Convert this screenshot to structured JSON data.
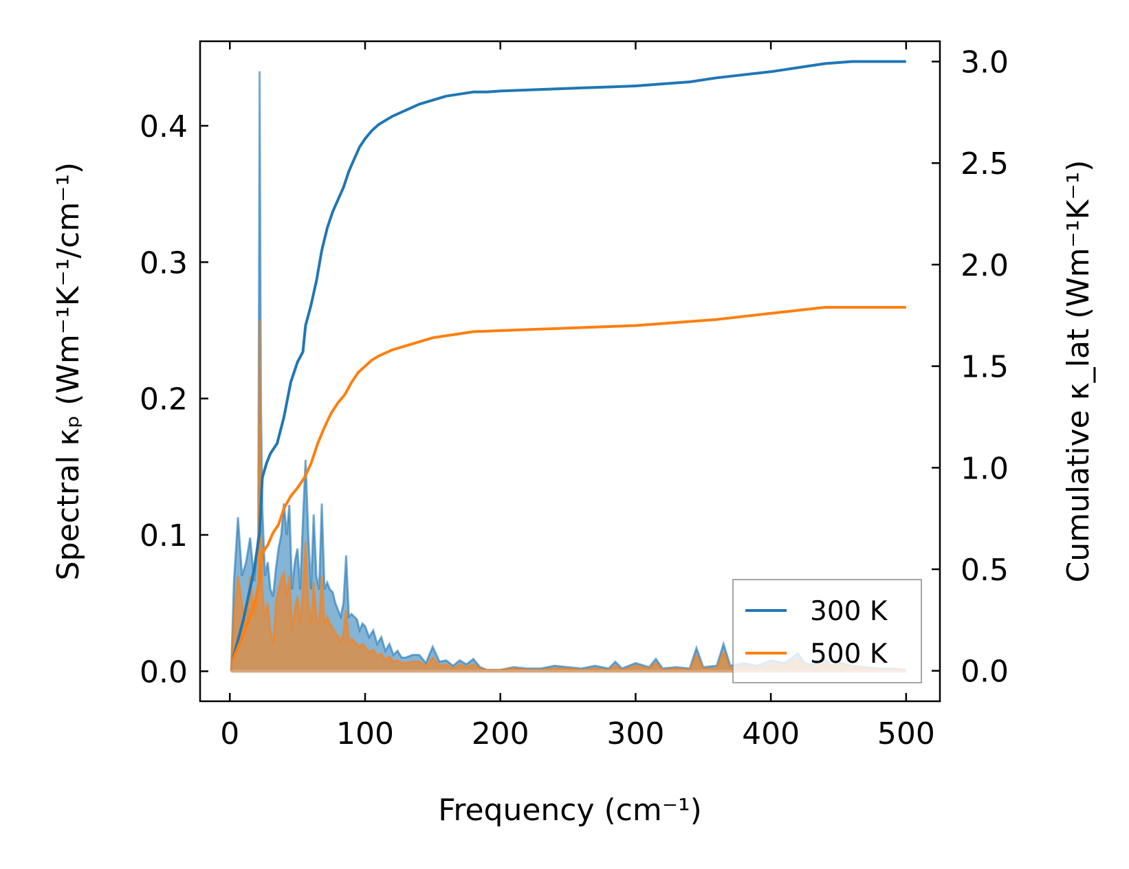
{
  "chart_data": {
    "type": "line",
    "xlabel": "Frequency (cm⁻¹)",
    "ylabel_left": "Spectral κₚ (Wm⁻¹K⁻¹/cm⁻¹)",
    "ylabel_right": "Cumulative κ_lat (Wm⁻¹K⁻¹)",
    "xlim": [
      -22,
      525
    ],
    "ylim_left": [
      -0.022,
      0.462
    ],
    "ylim_right": [
      -0.15,
      3.1
    ],
    "x_ticks": [
      0,
      100,
      200,
      300,
      400,
      500
    ],
    "y_left_ticks": [
      0.0,
      0.1,
      0.2,
      0.3,
      0.4
    ],
    "y_right_ticks": [
      0.0,
      0.5,
      1.0,
      1.5,
      2.0,
      2.5,
      3.0
    ],
    "legend_position": "lower-right",
    "series": [
      {
        "name": "300 K",
        "color": "#1f77b4",
        "cumulative": {
          "x": [
            2,
            10,
            18,
            22,
            24,
            27,
            30,
            35,
            40,
            45,
            50,
            54,
            56,
            60,
            64,
            68,
            72,
            76,
            80,
            84,
            88,
            92,
            96,
            100,
            105,
            110,
            120,
            130,
            140,
            150,
            160,
            170,
            180,
            190,
            200,
            220,
            240,
            260,
            280,
            300,
            320,
            340,
            360,
            380,
            400,
            420,
            440,
            460,
            480,
            500
          ],
          "y": [
            0.05,
            0.25,
            0.5,
            0.68,
            0.95,
            1.02,
            1.07,
            1.12,
            1.25,
            1.42,
            1.52,
            1.57,
            1.7,
            1.8,
            1.92,
            2.07,
            2.18,
            2.26,
            2.32,
            2.38,
            2.46,
            2.52,
            2.58,
            2.62,
            2.66,
            2.69,
            2.73,
            2.76,
            2.79,
            2.81,
            2.83,
            2.84,
            2.85,
            2.85,
            2.855,
            2.86,
            2.865,
            2.87,
            2.875,
            2.88,
            2.89,
            2.9,
            2.92,
            2.935,
            2.95,
            2.97,
            2.99,
            3.0,
            3.0,
            3.0
          ]
        },
        "spectral": {
          "x": [
            1,
            3,
            6,
            9,
            12,
            15,
            18,
            21,
            22,
            23,
            24,
            26,
            28,
            30,
            32,
            34,
            36,
            38,
            40,
            42,
            44,
            46,
            48,
            50,
            52,
            54,
            56,
            58,
            60,
            62,
            64,
            66,
            68,
            70,
            72,
            74,
            76,
            78,
            80,
            82,
            84,
            86,
            88,
            90,
            92,
            94,
            96,
            98,
            100,
            103,
            106,
            109,
            112,
            115,
            118,
            121,
            124,
            127,
            130,
            135,
            140,
            145,
            150,
            155,
            160,
            165,
            170,
            175,
            180,
            185,
            190,
            200,
            210,
            220,
            230,
            240,
            250,
            260,
            270,
            280,
            285,
            290,
            300,
            310,
            315,
            320,
            330,
            340,
            345,
            350,
            360,
            365,
            370,
            380,
            390,
            400,
            410,
            420,
            425,
            430,
            440,
            445,
            450,
            460,
            470,
            480,
            490,
            500
          ],
          "y": [
            0.0,
            0.065,
            0.113,
            0.07,
            0.08,
            0.098,
            0.066,
            0.1,
            0.44,
            0.2,
            0.12,
            0.07,
            0.08,
            0.06,
            0.055,
            0.075,
            0.09,
            0.1,
            0.123,
            0.1,
            0.122,
            0.06,
            0.08,
            0.09,
            0.06,
            0.11,
            0.155,
            0.1,
            0.06,
            0.115,
            0.07,
            0.06,
            0.123,
            0.06,
            0.065,
            0.06,
            0.058,
            0.05,
            0.045,
            0.04,
            0.05,
            0.085,
            0.04,
            0.042,
            0.04,
            0.038,
            0.03,
            0.035,
            0.033,
            0.025,
            0.03,
            0.02,
            0.025,
            0.015,
            0.02,
            0.012,
            0.015,
            0.01,
            0.01,
            0.012,
            0.012,
            0.006,
            0.018,
            0.007,
            0.008,
            0.004,
            0.008,
            0.005,
            0.009,
            0.003,
            0.001,
            0.001,
            0.003,
            0.002,
            0.002,
            0.004,
            0.003,
            0.002,
            0.004,
            0.002,
            0.007,
            0.002,
            0.006,
            0.003,
            0.009,
            0.002,
            0.003,
            0.002,
            0.017,
            0.003,
            0.004,
            0.02,
            0.004,
            0.006,
            0.004,
            0.008,
            0.006,
            0.013,
            0.006,
            0.005,
            0.009,
            0.004,
            0.007,
            0.004,
            0.003,
            0.002,
            0.002,
            0.001
          ]
        }
      },
      {
        "name": "500 K",
        "color": "#ff7f0e",
        "cumulative": {
          "x": [
            2,
            10,
            18,
            22,
            24,
            28,
            32,
            36,
            40,
            45,
            50,
            55,
            60,
            65,
            70,
            75,
            80,
            85,
            90,
            95,
            100,
            105,
            110,
            120,
            130,
            140,
            150,
            160,
            170,
            180,
            190,
            200,
            220,
            240,
            260,
            280,
            300,
            320,
            340,
            360,
            380,
            400,
            420,
            440,
            460,
            480,
            500
          ],
          "y": [
            0.05,
            0.18,
            0.32,
            0.45,
            0.58,
            0.62,
            0.68,
            0.72,
            0.8,
            0.86,
            0.9,
            0.95,
            1.02,
            1.12,
            1.2,
            1.27,
            1.32,
            1.36,
            1.42,
            1.47,
            1.5,
            1.53,
            1.55,
            1.58,
            1.6,
            1.62,
            1.64,
            1.65,
            1.66,
            1.67,
            1.672,
            1.675,
            1.68,
            1.685,
            1.69,
            1.695,
            1.7,
            1.71,
            1.72,
            1.73,
            1.745,
            1.76,
            1.775,
            1.79,
            1.79,
            1.79,
            1.79
          ]
        },
        "spectral": {
          "x": [
            1,
            3,
            6,
            9,
            12,
            15,
            18,
            21,
            22,
            23,
            24,
            26,
            28,
            30,
            32,
            34,
            36,
            38,
            40,
            42,
            44,
            46,
            48,
            50,
            52,
            54,
            56,
            58,
            60,
            62,
            64,
            66,
            68,
            70,
            72,
            74,
            76,
            78,
            80,
            82,
            84,
            86,
            88,
            90,
            92,
            94,
            96,
            98,
            100,
            103,
            106,
            109,
            112,
            115,
            118,
            121,
            124,
            127,
            130,
            135,
            140,
            145,
            150,
            155,
            160,
            165,
            170,
            175,
            180,
            185,
            190,
            200,
            210,
            220,
            230,
            240,
            250,
            260,
            270,
            280,
            285,
            290,
            300,
            310,
            315,
            320,
            330,
            340,
            345,
            350,
            360,
            365,
            370,
            380,
            390,
            400,
            410,
            420,
            425,
            430,
            440,
            445,
            450,
            460,
            470,
            480,
            490,
            500
          ],
          "y": [
            0.0,
            0.04,
            0.07,
            0.05,
            0.03,
            0.07,
            0.04,
            0.06,
            0.258,
            0.1,
            0.06,
            0.04,
            0.05,
            0.03,
            0.02,
            0.05,
            0.06,
            0.068,
            0.072,
            0.055,
            0.07,
            0.03,
            0.045,
            0.055,
            0.035,
            0.06,
            0.095,
            0.05,
            0.035,
            0.065,
            0.04,
            0.035,
            0.07,
            0.035,
            0.04,
            0.035,
            0.032,
            0.028,
            0.026,
            0.022,
            0.028,
            0.045,
            0.022,
            0.024,
            0.022,
            0.02,
            0.018,
            0.02,
            0.018,
            0.014,
            0.016,
            0.011,
            0.013,
            0.008,
            0.011,
            0.007,
            0.008,
            0.006,
            0.006,
            0.007,
            0.007,
            0.004,
            0.01,
            0.004,
            0.005,
            0.002,
            0.005,
            0.003,
            0.005,
            0.002,
            0.001,
            0.001,
            0.002,
            0.001,
            0.001,
            0.002,
            0.002,
            0.001,
            0.002,
            0.001,
            0.004,
            0.001,
            0.004,
            0.002,
            0.006,
            0.001,
            0.002,
            0.001,
            0.012,
            0.002,
            0.002,
            0.014,
            0.002,
            0.004,
            0.002,
            0.005,
            0.004,
            0.009,
            0.004,
            0.003,
            0.006,
            0.003,
            0.005,
            0.003,
            0.002,
            0.001,
            0.001,
            0.001
          ]
        }
      }
    ]
  }
}
